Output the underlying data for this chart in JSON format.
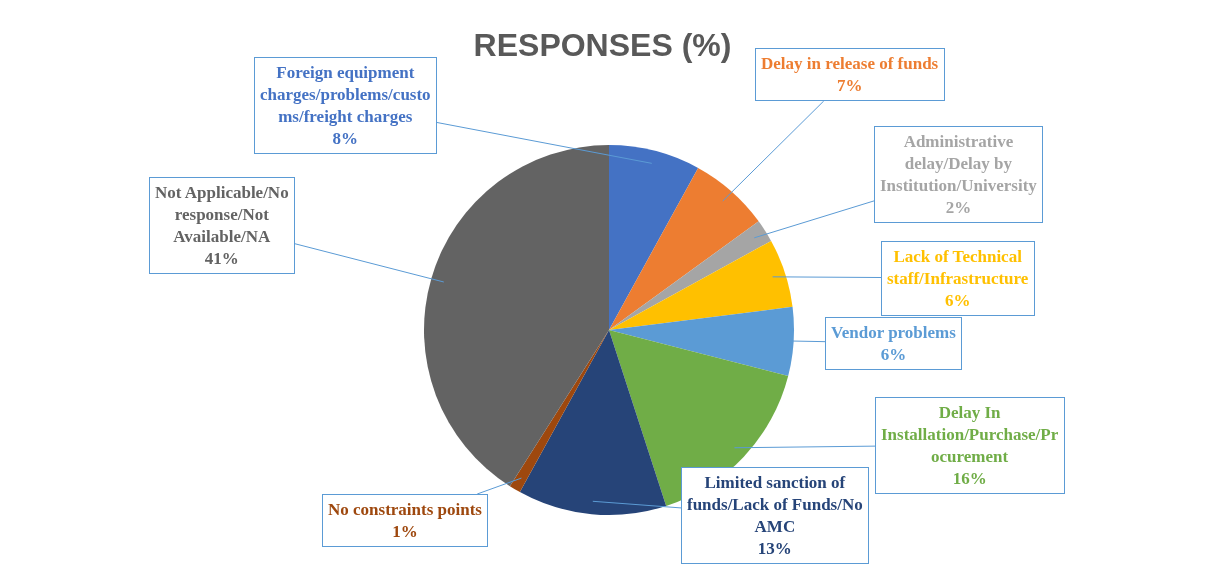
{
  "chart_data": {
    "type": "pie",
    "title": "RESPONSES (%)",
    "categories": [
      "Foreign equipment charges/problems/customs/freight charges",
      "Delay in release of funds",
      "Administrative delay/Delay by Institution/University",
      "Lack of Technical staff/Infrastructure",
      "Vendor problems",
      "Delay In Installation/Purchase/Procurement",
      "Limited sanction of funds/Lack of Funds/No AMC",
      "No constraints points",
      "Not Applicable/No response/Not Available/NA"
    ],
    "values": [
      8,
      7,
      2,
      6,
      6,
      16,
      13,
      1,
      41
    ],
    "colors": [
      "#4472c4",
      "#ed7d31",
      "#a5a5a5",
      "#ffc000",
      "#5b9bd5",
      "#70ad47",
      "#264478",
      "#9e480e",
      "#636363"
    ],
    "value_labels": [
      "8%",
      "7%",
      "2%",
      "6%",
      "6%",
      "16%",
      "13%",
      "1%",
      "41%"
    ],
    "legend": false
  }
}
